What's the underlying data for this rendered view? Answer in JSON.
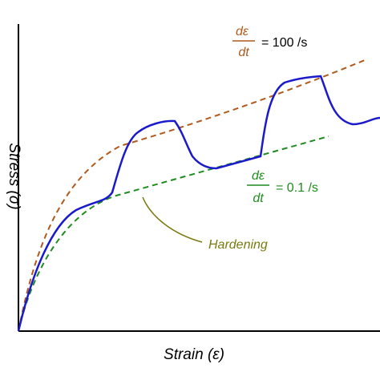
{
  "labels": {
    "x_axis": "Strain (ε)",
    "y_axis": "Stress (σ)",
    "fast_rate": {
      "numerator": "dε",
      "denominator": "dt",
      "value": "= 100 /s"
    },
    "slow_rate": {
      "numerator": "dε",
      "denominator": "dt",
      "value": "= 0.1 /s"
    },
    "hardening": "Hardening"
  },
  "colors": {
    "axes": "#000000",
    "response_curve": "#1a1acc",
    "fast_rate_curve": "#b05a1e",
    "slow_rate_curve": "#1e8c1e",
    "annotation": "#7a7a10"
  }
}
